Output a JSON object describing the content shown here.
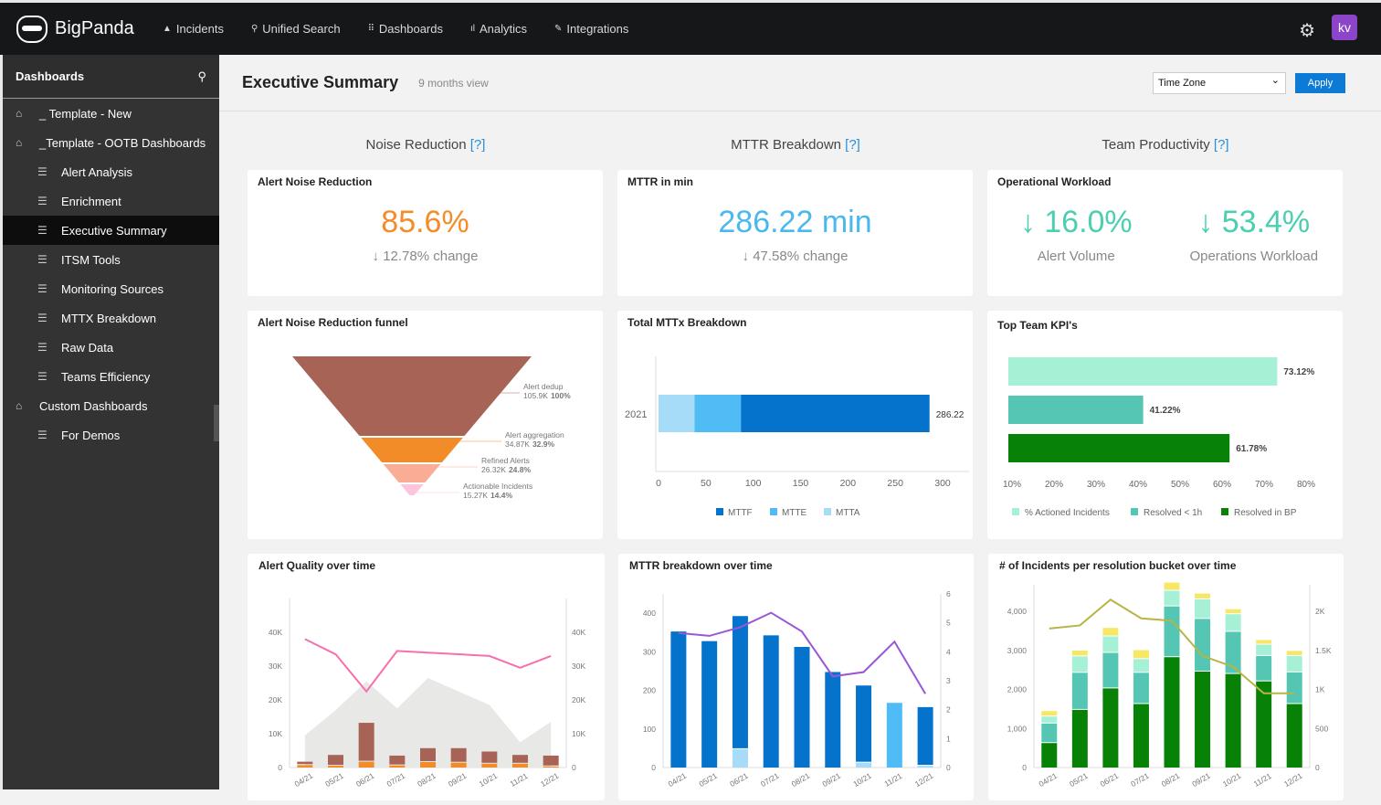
{
  "app": {
    "brand": "BigPanda",
    "nav": [
      {
        "icon": "warning-icon",
        "glyph": "▲",
        "label": "Incidents"
      },
      {
        "icon": "search-icon",
        "glyph": "⚲",
        "label": "Unified Search"
      },
      {
        "icon": "grid-icon",
        "glyph": "⠿",
        "label": "Dashboards"
      },
      {
        "icon": "bar-chart-icon",
        "glyph": "ıl",
        "label": "Analytics"
      },
      {
        "icon": "plug-icon",
        "glyph": "✎",
        "label": "Integrations"
      }
    ],
    "avatar": "kv"
  },
  "sidebar": {
    "title": "Dashboards",
    "items": [
      {
        "label": "_ Template - New",
        "level": 0
      },
      {
        "label": "_Template - OOTB Dashboards",
        "level": 0
      },
      {
        "label": "Alert Analysis",
        "level": 1
      },
      {
        "label": "Enrichment",
        "level": 1
      },
      {
        "label": "Executive Summary",
        "level": 1,
        "active": true
      },
      {
        "label": "ITSM Tools",
        "level": 1
      },
      {
        "label": "Monitoring Sources",
        "level": 1
      },
      {
        "label": "MTTX Breakdown",
        "level": 1
      },
      {
        "label": "Raw Data",
        "level": 1
      },
      {
        "label": "Teams Efficiency",
        "level": 1
      },
      {
        "label": "Custom Dashboards",
        "level": 0
      },
      {
        "label": "For Demos",
        "level": 1
      }
    ]
  },
  "header": {
    "title": "Executive Summary",
    "subtitle": "9 months view",
    "timezone": "Time Zone",
    "apply": "Apply"
  },
  "sections": [
    {
      "label": "Noise Reduction",
      "help": "[?]"
    },
    {
      "label": "MTTR Breakdown",
      "help": "[?]"
    },
    {
      "label": "Team Productivity",
      "help": "[?]"
    }
  ],
  "kpis": {
    "noise": {
      "title": "Alert Noise Reduction",
      "value": "85.6%",
      "change": "↓ 12.78% change",
      "color": "#f48c28"
    },
    "mttr": {
      "title": "MTTR in min",
      "value": "286.22 min",
      "change": "↓ 47.58% change",
      "color": "#4ab8ee"
    },
    "ops": {
      "title": "Operational Workload",
      "a_value": "↓ 16.0%",
      "a_label": "Alert Volume",
      "b_value": "↓ 53.4%",
      "b_label": "Operations Workload",
      "color": "#4ccfb0"
    }
  },
  "chart_titles": [
    "Alert Noise Reduction funnel",
    "Total MTTx Breakdown",
    "Top Team KPI's",
    "Alert Quality over time",
    "MTTR breakdown over time",
    "# of Incidents per resolution bucket over time"
  ],
  "chart_data": [
    {
      "type": "funnel",
      "stages": [
        {
          "name": "Alert dedup",
          "value": "105.9K",
          "pct": "100%",
          "color": "#a86357"
        },
        {
          "name": "Alert aggregation",
          "value": "34.87K",
          "pct": "32.9%",
          "color": "#f28c28"
        },
        {
          "name": "Refined Alerts",
          "value": "26.32K",
          "pct": "24.8%",
          "color": "#f8ad94"
        },
        {
          "name": "Actionable Incidents",
          "value": "15.27K",
          "pct": "14.4%",
          "color": "#fcc5dd"
        }
      ]
    },
    {
      "type": "bar",
      "orientation": "horizontal",
      "stacked": true,
      "categories": [
        "2021"
      ],
      "series": [
        {
          "name": "MTTA",
          "values": [
            38
          ],
          "color": "#a6dcf7"
        },
        {
          "name": "MTTE",
          "values": [
            49
          ],
          "color": "#4fbcf5"
        },
        {
          "name": "MTTF",
          "values": [
            199.22
          ],
          "color": "#0572cc"
        }
      ],
      "total_label": "286.22",
      "xlim": [
        0,
        300
      ],
      "xticks": [
        0,
        50,
        100,
        150,
        200,
        250,
        300
      ],
      "legend": "bottom",
      "legend_order": [
        "MTTF",
        "MTTE",
        "MTTA"
      ]
    },
    {
      "type": "bar",
      "orientation": "horizontal",
      "categories": [
        "% Actioned Incidents",
        "Resolved < 1h",
        "Resolved in BP"
      ],
      "values": [
        73.12,
        41.22,
        61.78
      ],
      "labels": [
        "73.12%",
        "41.22%",
        "61.78%"
      ],
      "colors": [
        "#a6f0d6",
        "#54c6b3",
        "#078207"
      ],
      "xlim": [
        10,
        80
      ],
      "xticks": [
        "10%",
        "20%",
        "30%",
        "40%",
        "50%",
        "60%",
        "70%",
        "80%"
      ],
      "legend": "bottom"
    },
    {
      "type": "bar+line",
      "x": [
        "04/21",
        "05/21",
        "06/21",
        "07/21",
        "08/21",
        "09/21",
        "10/21",
        "11/21",
        "12/21"
      ],
      "ylim": [
        0,
        50000
      ],
      "yticks": [
        "0",
        "10K",
        "20K",
        "30K",
        "40K"
      ],
      "area": {
        "values": [
          9500,
          17000,
          25500,
          17500,
          26500,
          22500,
          18500,
          7500,
          13500
        ],
        "color": "#e8e8e6"
      },
      "series": [
        {
          "values": [
            1000,
            800,
            2000,
            900,
            1900,
            1700,
            1400,
            1400,
            600
          ],
          "color": "#f28c28"
        },
        {
          "values": [
            1000,
            3200,
            11500,
            2900,
            4100,
            4300,
            3600,
            2600,
            3200
          ],
          "color": "#a86357"
        }
      ],
      "line": {
        "values": [
          38000,
          33500,
          22500,
          34500,
          34000,
          33500,
          33000,
          29500,
          33000
        ],
        "color": "#f76fae"
      }
    },
    {
      "type": "bar+line",
      "x": [
        "04/21",
        "05/21",
        "06/21",
        "07/21",
        "08/21",
        "09/21",
        "10/21",
        "11/21",
        "12/21"
      ],
      "ylim": [
        0,
        450
      ],
      "yticks": [
        "0",
        "100",
        "200",
        "300",
        "400"
      ],
      "y2lim": [
        0,
        6
      ],
      "y2ticks": [
        "0",
        "1",
        "2",
        "3",
        "4",
        "5",
        "6"
      ],
      "series": [
        {
          "name": "MTTA",
          "values": [
            0,
            0,
            50,
            0,
            0,
            0,
            15,
            0,
            7
          ],
          "color": "#a6dcf7"
        },
        {
          "name": "MTTE",
          "values": [
            0,
            0,
            0,
            0,
            0,
            0,
            0,
            170,
            0
          ],
          "color": "#4fbcf5"
        },
        {
          "name": "MTTF",
          "values": [
            355,
            330,
            345,
            345,
            315,
            250,
            200,
            0,
            152
          ],
          "color": "#0572cc"
        }
      ],
      "line": {
        "values": [
          4.65,
          4.55,
          4.85,
          5.35,
          4.7,
          3.15,
          3.3,
          4.35,
          2.55
        ],
        "color": "#9a56d8"
      }
    },
    {
      "type": "bar+line",
      "x": [
        "04/21",
        "05/21",
        "06/21",
        "07/21",
        "08/21",
        "09/21",
        "10/21",
        "11/21",
        "12/21"
      ],
      "ylim": [
        0,
        4680
      ],
      "yticks": [
        "0",
        "1,000",
        "2,000",
        "3,000",
        "4,000"
      ],
      "y2lim": [
        0,
        2340
      ],
      "y2ticks": [
        "0",
        "500",
        "1K",
        "1.5K",
        "2K"
      ],
      "series": [
        {
          "name": "Resolved in BP",
          "values": [
            650,
            1500,
            2050,
            1650,
            2850,
            2480,
            2420,
            2230,
            1650
          ],
          "color": "#078207"
        },
        {
          "name": "Resolved < 1h",
          "values": [
            500,
            950,
            910,
            800,
            1300,
            1350,
            1080,
            650,
            810
          ],
          "color": "#54c6b3"
        },
        {
          "name": "% Actioned Incidents",
          "values": [
            180,
            420,
            420,
            350,
            400,
            500,
            450,
            290,
            420
          ],
          "color": "#a6f0d6"
        },
        {
          "values": [
            140,
            150,
            220,
            230,
            210,
            150,
            130,
            120,
            130
          ],
          "color": "#f6e866"
        }
      ],
      "line": {
        "values": [
          1780,
          1820,
          2150,
          1910,
          1880,
          1430,
          1290,
          950,
          950
        ],
        "color": "#b8b545"
      }
    }
  ]
}
